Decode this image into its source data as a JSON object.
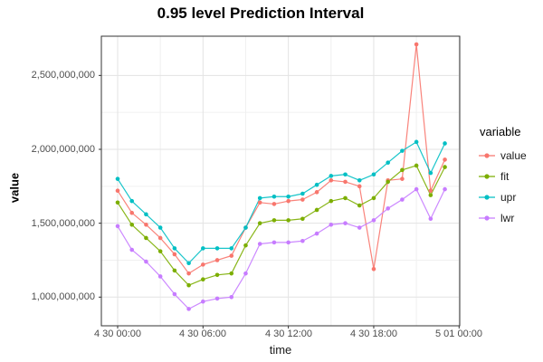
{
  "chart_data": {
    "type": "line",
    "title": "0.95 level Prediction Interval",
    "xlabel": "time",
    "ylabel": "value",
    "legend_title": "variable",
    "legend_position": "right",
    "grid": true,
    "x": [
      "4 30 00:00",
      "4 30 01:00",
      "4 30 02:00",
      "4 30 03:00",
      "4 30 04:00",
      "4 30 05:00",
      "4 30 06:00",
      "4 30 07:00",
      "4 30 08:00",
      "4 30 09:00",
      "4 30 10:00",
      "4 30 11:00",
      "4 30 12:00",
      "4 30 13:00",
      "4 30 14:00",
      "4 30 15:00",
      "4 30 16:00",
      "4 30 17:00",
      "4 30 18:00",
      "4 30 19:00",
      "4 30 20:00",
      "4 30 21:00",
      "4 30 22:00",
      "4 30 23:00"
    ],
    "x_tick_labels": [
      "4 30 00:00",
      "4 30 06:00",
      "4 30 12:00",
      "4 30 18:00",
      "5 01 00:00"
    ],
    "x_tick_hours": [
      0,
      6,
      12,
      18,
      24
    ],
    "x_minor_hours": [
      3,
      9,
      15,
      21
    ],
    "y_ticks": [
      1000000000,
      1500000000,
      2000000000,
      2500000000
    ],
    "y_tick_labels": [
      "1,000,000,000",
      "1,500,000,000",
      "2,000,000,000",
      "2,500,000,000"
    ],
    "y_minor_ticks": [
      1250000000,
      1750000000,
      2250000000
    ],
    "ylim": [
      800000000,
      2780000000
    ],
    "series": [
      {
        "name": "value",
        "color": "#F8766D",
        "values": [
          1720000000,
          1570000000,
          1490000000,
          1400000000,
          1290000000,
          1160000000,
          1220000000,
          1250000000,
          1280000000,
          1470000000,
          1640000000,
          1630000000,
          1650000000,
          1660000000,
          1710000000,
          1790000000,
          1780000000,
          1750000000,
          1190000000,
          1790000000,
          1800000000,
          2710000000,
          1720000000,
          1930000000
        ]
      },
      {
        "name": "fit",
        "color": "#7CAE00",
        "values": [
          1640000000,
          1490000000,
          1400000000,
          1310000000,
          1180000000,
          1080000000,
          1120000000,
          1150000000,
          1160000000,
          1350000000,
          1500000000,
          1520000000,
          1520000000,
          1530000000,
          1590000000,
          1650000000,
          1670000000,
          1620000000,
          1670000000,
          1780000000,
          1860000000,
          1890000000,
          1690000000,
          1880000000
        ]
      },
      {
        "name": "upr",
        "color": "#00BFC4",
        "values": [
          1800000000,
          1650000000,
          1560000000,
          1470000000,
          1330000000,
          1230000000,
          1330000000,
          1330000000,
          1330000000,
          1470000000,
          1670000000,
          1680000000,
          1680000000,
          1700000000,
          1760000000,
          1820000000,
          1830000000,
          1790000000,
          1830000000,
          1910000000,
          1990000000,
          2050000000,
          1840000000,
          2040000000
        ]
      },
      {
        "name": "lwr",
        "color": "#C77CFF",
        "values": [
          1480000000,
          1320000000,
          1240000000,
          1140000000,
          1020000000,
          920000000,
          970000000,
          990000000,
          1000000000,
          1160000000,
          1360000000,
          1370000000,
          1370000000,
          1380000000,
          1430000000,
          1490000000,
          1500000000,
          1470000000,
          1520000000,
          1600000000,
          1660000000,
          1730000000,
          1530000000,
          1730000000
        ]
      }
    ],
    "style": {
      "panel_border_color": "#333333",
      "grid_major_color": "#e3e3e3",
      "grid_minor_color": "#f0f0f0",
      "tick_color": "#333333"
    }
  },
  "y_tick_tops": {
    "t25": 83,
    "t20": 165,
    "t15": 247,
    "t10": 328
  },
  "x_tick_lefts": {
    "x0": 130,
    "x6": 224,
    "x12": 319,
    "x18": 413,
    "x24": 507
  }
}
